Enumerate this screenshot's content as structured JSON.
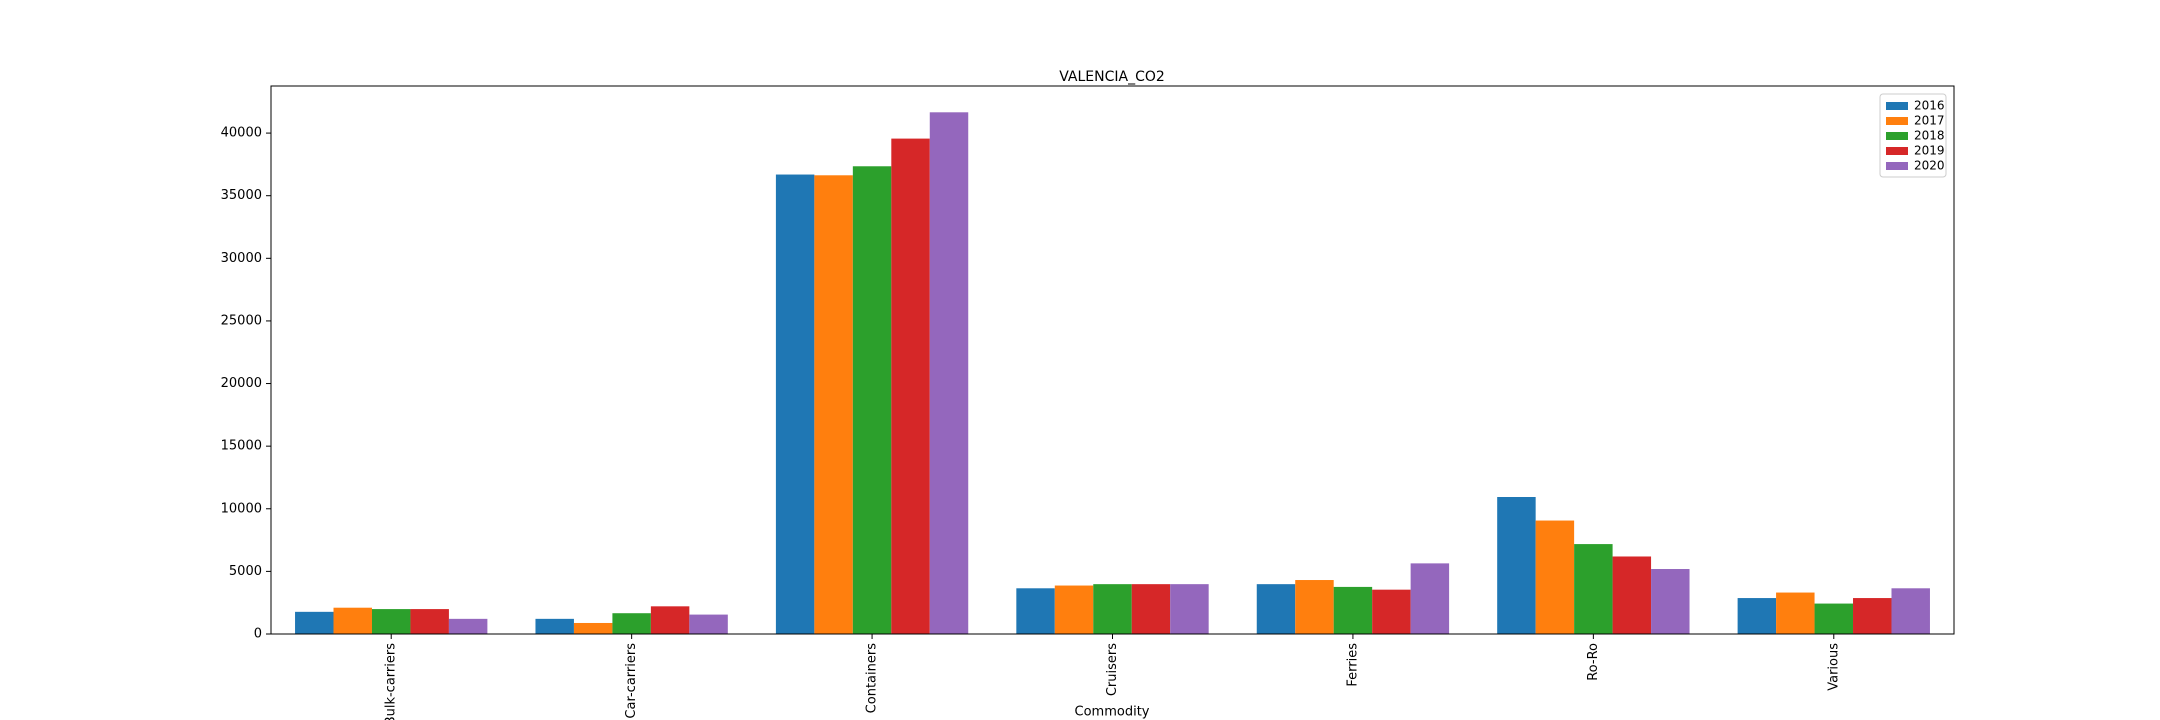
{
  "chart_data": {
    "type": "bar",
    "title": "VALENCIA_CO2",
    "x_label": "Commodity",
    "categories": [
      "Bulk-carriers",
      "Car-carriers",
      "Containers",
      "Cruisers",
      "Ferries",
      "Ro-Ro",
      "Various"
    ],
    "series": [
      {
        "name": "2016",
        "color": "#1f77b4",
        "values": [
          1770,
          1210,
          36690,
          3650,
          3980,
          10940,
          2870
        ]
      },
      {
        "name": "2017",
        "color": "#ff7f0e",
        "values": [
          2100,
          880,
          36630,
          3870,
          4310,
          9060,
          3310
        ]
      },
      {
        "name": "2018",
        "color": "#2ca02c",
        "values": [
          1990,
          1660,
          37350,
          3980,
          3760,
          7180,
          2430
        ]
      },
      {
        "name": "2019",
        "color": "#d62728",
        "values": [
          1990,
          2210,
          39560,
          3980,
          3540,
          6190,
          2870
        ]
      },
      {
        "name": "2020",
        "color": "#9467bd",
        "values": [
          1210,
          1550,
          41660,
          3980,
          5640,
          5190,
          3650
        ]
      }
    ],
    "ylim": [
      0,
      43760
    ],
    "yticks": [
      0,
      5000,
      10000,
      15000,
      20000,
      25000,
      30000,
      35000,
      40000
    ],
    "grid": false,
    "legend": "upper right"
  }
}
